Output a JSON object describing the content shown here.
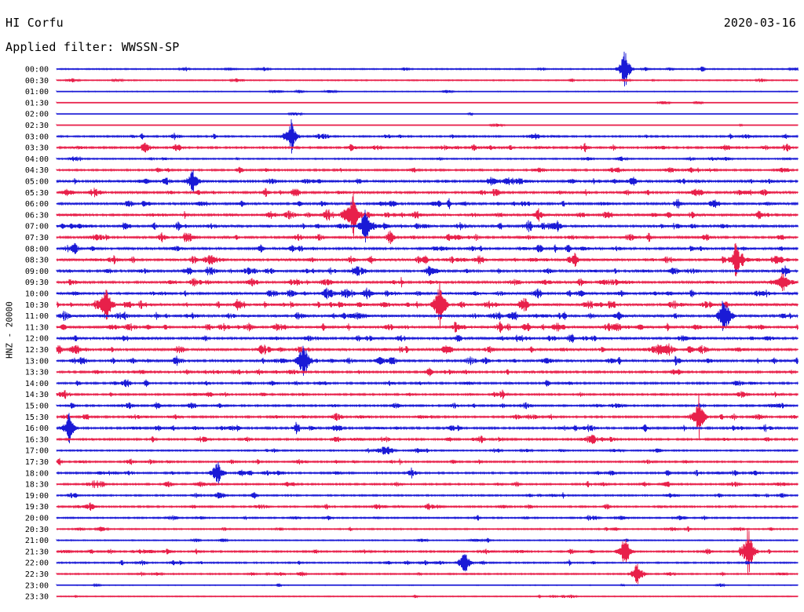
{
  "header": {
    "station": "HI Corfu",
    "date": "2020-03-16",
    "filter": "Applied filter: WWSSN-SP",
    "channel_label": "HNZ - 20000"
  },
  "colors": {
    "trace_a": "#1a1ad6",
    "trace_b": "#e8204a",
    "background": "#ffffff"
  },
  "chart_data": {
    "type": "line",
    "title": "HI Corfu",
    "subtitle": "Applied filter: WWSSN-SP",
    "date": "2020-03-16",
    "ylabel": "HNZ - 20000",
    "row_labels": [
      "00:00",
      "00:30",
      "01:00",
      "01:30",
      "02:00",
      "02:30",
      "03:00",
      "03:30",
      "04:00",
      "04:30",
      "05:00",
      "05:30",
      "06:00",
      "06:30",
      "07:00",
      "07:30",
      "08:00",
      "08:30",
      "09:00",
      "09:30",
      "10:00",
      "10:30",
      "11:00",
      "11:30",
      "12:00",
      "12:30",
      "13:00",
      "13:30",
      "14:00",
      "14:30",
      "15:00",
      "15:30",
      "16:00",
      "16:30",
      "17:00",
      "17:30",
      "18:00",
      "18:30",
      "19:00",
      "19:30",
      "20:00",
      "20:30",
      "21:00",
      "21:30",
      "22:00",
      "22:30",
      "23:00",
      "23:30"
    ],
    "row_activity": [
      0.25,
      0.2,
      0.1,
      0.05,
      0.05,
      0.05,
      0.45,
      0.55,
      0.3,
      0.5,
      0.7,
      0.65,
      0.75,
      0.85,
      0.8,
      0.7,
      0.7,
      0.85,
      0.75,
      0.75,
      0.8,
      0.95,
      0.85,
      0.9,
      0.75,
      0.8,
      0.75,
      0.6,
      0.55,
      0.5,
      0.5,
      0.55,
      0.6,
      0.55,
      0.35,
      0.45,
      0.5,
      0.45,
      0.4,
      0.45,
      0.35,
      0.3,
      0.2,
      0.45,
      0.35,
      0.3,
      0.1,
      0.15
    ],
    "events": [
      {
        "row": 0,
        "minute": 23.0,
        "amp": 0.8
      },
      {
        "row": 6,
        "minute": 9.5,
        "amp": 0.6
      },
      {
        "row": 10,
        "minute": 5.5,
        "amp": 0.5
      },
      {
        "row": 13,
        "minute": 12.0,
        "amp": 0.8
      },
      {
        "row": 14,
        "minute": 12.5,
        "amp": 0.7
      },
      {
        "row": 17,
        "minute": 27.5,
        "amp": 0.7
      },
      {
        "row": 21,
        "minute": 2.0,
        "amp": 0.9
      },
      {
        "row": 21,
        "minute": 15.5,
        "amp": 1.0
      },
      {
        "row": 22,
        "minute": 27.0,
        "amp": 0.7
      },
      {
        "row": 26,
        "minute": 10.0,
        "amp": 0.9
      },
      {
        "row": 31,
        "minute": 26.0,
        "amp": 0.8
      },
      {
        "row": 32,
        "minute": 0.5,
        "amp": 0.6
      },
      {
        "row": 36,
        "minute": 6.5,
        "amp": 0.5
      },
      {
        "row": 43,
        "minute": 28.0,
        "amp": 1.0
      },
      {
        "row": 43,
        "minute": 23.0,
        "amp": 0.7
      },
      {
        "row": 44,
        "minute": 16.5,
        "amp": 0.5
      },
      {
        "row": 45,
        "minute": 23.5,
        "amp": 0.5
      }
    ]
  }
}
